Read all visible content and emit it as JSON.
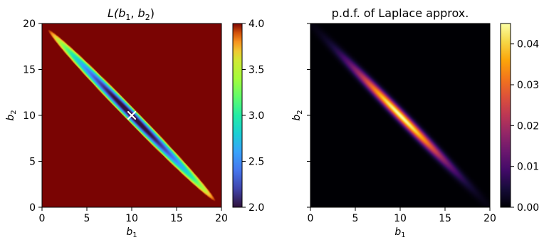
{
  "chart_data": [
    {
      "type": "heatmap",
      "title": "L(b1, b2)",
      "title_parts": {
        "main": "L(",
        "s1": "b",
        "s1sub": "1",
        "sep": ", ",
        "s2": "b",
        "s2sub": "2",
        "close": ")"
      },
      "xlabel": {
        "var": "b",
        "sub": "1"
      },
      "ylabel": {
        "var": "b",
        "sub": "2"
      },
      "xlim": [
        0,
        20
      ],
      "ylim": [
        0,
        20
      ],
      "xticks": [
        "0",
        "5",
        "10",
        "15",
        "20"
      ],
      "yticks": [
        "0",
        "5",
        "10",
        "15",
        "20"
      ],
      "colormap": "turbo",
      "clim": [
        2.0,
        4.0
      ],
      "colorbar_ticks": [
        "2.0",
        "2.5",
        "3.0",
        "3.5",
        "4.0"
      ],
      "marker": {
        "x": 10,
        "y": 10,
        "symbol": "x",
        "color": "#ffffff"
      },
      "field": {
        "center": [
          10,
          10
        ],
        "min_value": 1.9,
        "axis_along": [
          1,
          -1
        ],
        "half_length": 14.14,
        "half_width": 0.75
      }
    },
    {
      "type": "heatmap",
      "title": "p.d.f. of Laplace approx.",
      "xlabel": {
        "var": "b",
        "sub": "1"
      },
      "ylabel": {
        "var": "b",
        "sub": "2"
      },
      "xlim": [
        0,
        20
      ],
      "ylim": [
        0,
        20
      ],
      "xticks": [
        "0",
        "5",
        "10",
        "15",
        "20"
      ],
      "yticks_shown": false,
      "colormap": "inferno",
      "clim": [
        0.0,
        0.045
      ],
      "colorbar_ticks": [
        "0.00",
        "0.01",
        "0.02",
        "0.03",
        "0.04"
      ],
      "field": {
        "center": [
          10,
          10
        ],
        "peak": 0.045,
        "axis_along": [
          1,
          -1
        ],
        "sigma_along": 5.0,
        "sigma_across": 0.35
      }
    }
  ]
}
